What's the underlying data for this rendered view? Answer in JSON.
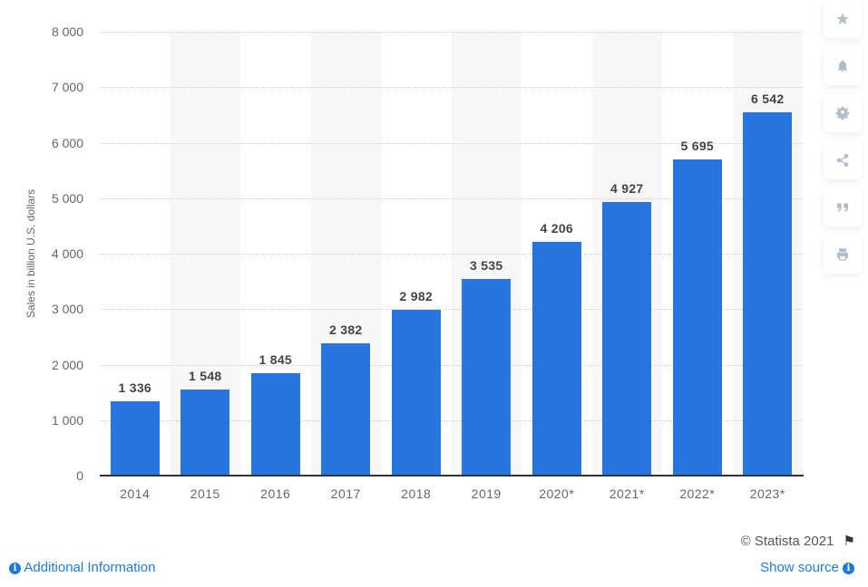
{
  "chart_data": {
    "type": "bar",
    "title": "",
    "xlabel": "",
    "ylabel": "Sales in billion U.S. dollars",
    "ylim": [
      0,
      8000
    ],
    "yticks": [
      "0",
      "1 000",
      "2 000",
      "3 000",
      "4 000",
      "5 000",
      "6 000",
      "7 000",
      "8 000"
    ],
    "categories": [
      "2014",
      "2015",
      "2016",
      "2017",
      "2018",
      "2019",
      "2020*",
      "2021*",
      "2022*",
      "2023*"
    ],
    "values": [
      1336,
      1548,
      1845,
      2382,
      2982,
      3535,
      4206,
      4927,
      5695,
      6542
    ],
    "value_labels": [
      "1 336",
      "1 548",
      "1 845",
      "2 382",
      "2 982",
      "3 535",
      "4 206",
      "4 927",
      "5 695",
      "6 542"
    ],
    "grid": true,
    "legend": null,
    "bar_color": "#2876dd"
  },
  "sidebar": {
    "buttons": [
      {
        "icon": "star-icon",
        "name": "favorite-button"
      },
      {
        "icon": "bell-icon",
        "name": "notification-button"
      },
      {
        "icon": "gear-icon",
        "name": "settings-button"
      },
      {
        "icon": "share-icon",
        "name": "share-button"
      },
      {
        "icon": "quote-icon",
        "name": "cite-button"
      },
      {
        "icon": "print-icon",
        "name": "print-button"
      }
    ]
  },
  "footer": {
    "copyright": "© Statista 2021",
    "additional_info": "Additional Information",
    "show_source": "Show source"
  }
}
